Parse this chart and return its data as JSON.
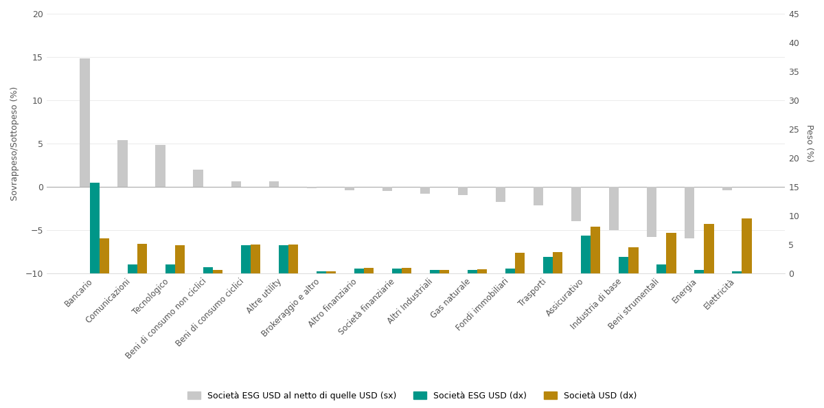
{
  "categories": [
    "Bancario",
    "Comunicazioni",
    "Tecnologico",
    "Beni di consumo non ciclici",
    "Beni di consumo ciclici",
    "Altre utility",
    "Brokeraggio e altro",
    "Altro finanziario",
    "Società finanziarie",
    "Altri Industriali",
    "Gas naturale",
    "Fondi immobiliari",
    "Trasporti",
    "Assicurativo",
    "Industria di base",
    "Beni strumentali",
    "Energia",
    "Elettricità"
  ],
  "gray_bars": [
    14.8,
    5.4,
    4.8,
    2.0,
    0.6,
    0.6,
    -0.2,
    -0.4,
    -0.5,
    -0.8,
    -1.0,
    -1.8,
    -2.2,
    -4.0,
    -5.0,
    -5.8,
    -6.0,
    -0.4
  ],
  "esg_usd_weight": [
    15.7,
    1.5,
    1.5,
    1.0,
    4.8,
    4.8,
    0.3,
    0.8,
    0.8,
    0.5,
    0.5,
    0.8,
    2.8,
    6.5,
    2.8,
    1.5,
    0.5,
    0.3
  ],
  "usd_weight": [
    6.0,
    5.1,
    4.8,
    0.5,
    5.0,
    5.0,
    0.3,
    0.9,
    0.9,
    0.5,
    0.7,
    3.5,
    3.7,
    8.0,
    4.5,
    7.0,
    8.5,
    9.5
  ],
  "color_gray": "#c8c8c8",
  "color_teal": "#009688",
  "color_gold": "#B8860B",
  "ylabel_left": "Sovrappeso/Sottopeso (%)",
  "ylabel_right": "Peso (%)",
  "ylim_left": [
    -10,
    20
  ],
  "ylim_right": [
    0,
    45
  ],
  "yticks_left": [
    -10,
    -5,
    0,
    5,
    10,
    15,
    20
  ],
  "yticks_right": [
    0,
    5,
    10,
    15,
    20,
    25,
    30,
    35,
    40,
    45
  ],
  "legend_gray": "Società ESG USD al netto di quelle USD (sx)",
  "legend_teal": "Società ESG USD (dx)",
  "legend_gold": "Società USD (dx)",
  "background_color": "#ffffff",
  "bar_width": 0.26
}
